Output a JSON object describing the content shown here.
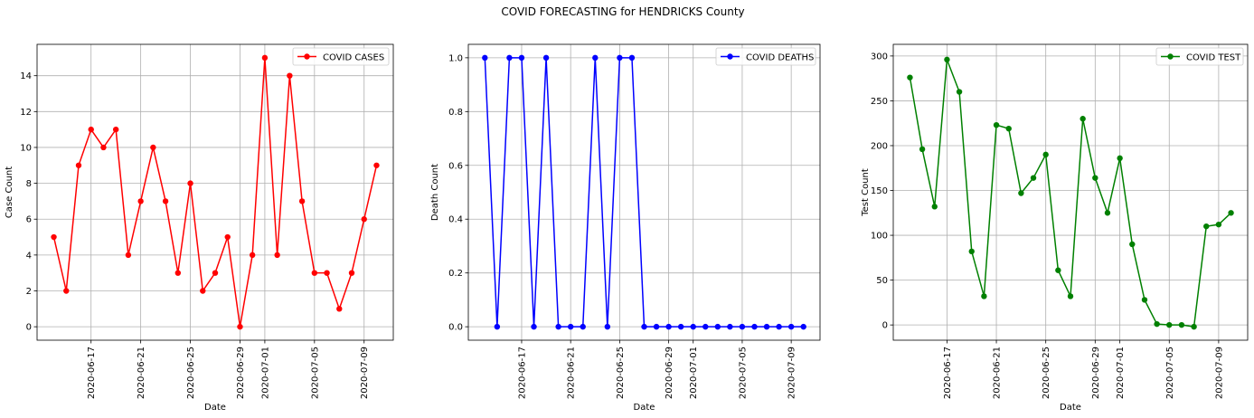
{
  "suptitle": "COVID FORECASTING for HENDRICKS County",
  "x_tick_labels": [
    "2020-06-17",
    "2020-06-21",
    "2020-06-25",
    "2020-06-29",
    "2020-07-01",
    "2020-07-05",
    "2020-07-09"
  ],
  "chart_data": [
    {
      "type": "line",
      "series": [
        {
          "name": "COVID CASES",
          "color": "#ff0000",
          "marker": "circle",
          "values": [
            5,
            2,
            9,
            11,
            10,
            11,
            4,
            7,
            10,
            7,
            3,
            8,
            2,
            3,
            5,
            0,
            4,
            15,
            4,
            14,
            7,
            3,
            3,
            1,
            3,
            6,
            9
          ]
        }
      ],
      "x": [
        "2020-06-14",
        "2020-06-15",
        "2020-06-16",
        "2020-06-17",
        "2020-06-18",
        "2020-06-19",
        "2020-06-20",
        "2020-06-21",
        "2020-06-22",
        "2020-06-23",
        "2020-06-24",
        "2020-06-25",
        "2020-06-26",
        "2020-06-27",
        "2020-06-28",
        "2020-06-29",
        "2020-06-30",
        "2020-07-01",
        "2020-07-02",
        "2020-07-03",
        "2020-07-04",
        "2020-07-05",
        "2020-07-06",
        "2020-07-07",
        "2020-07-08",
        "2020-07-09",
        "2020-07-10"
      ],
      "xlabel": "Date",
      "ylabel": "Case Count",
      "ylim": [
        -0.75,
        15.75
      ],
      "yticks": [
        0,
        2,
        4,
        6,
        8,
        10,
        12,
        14
      ],
      "ytick_labels": [
        "0",
        "2",
        "4",
        "6",
        "8",
        "10",
        "12",
        "14"
      ],
      "legend": "top-right",
      "grid": true
    },
    {
      "type": "line",
      "series": [
        {
          "name": "COVID DEATHS",
          "color": "#0000ff",
          "marker": "circle",
          "values": [
            1,
            0,
            1,
            1,
            0,
            1,
            0,
            0,
            0,
            1,
            0,
            1,
            1,
            0,
            0,
            0,
            0,
            0,
            0,
            0,
            0,
            0,
            0,
            0,
            0,
            0,
            0
          ]
        }
      ],
      "x": [
        "2020-06-14",
        "2020-06-15",
        "2020-06-16",
        "2020-06-17",
        "2020-06-18",
        "2020-06-19",
        "2020-06-20",
        "2020-06-21",
        "2020-06-22",
        "2020-06-23",
        "2020-06-24",
        "2020-06-25",
        "2020-06-26",
        "2020-06-27",
        "2020-06-28",
        "2020-06-29",
        "2020-06-30",
        "2020-07-01",
        "2020-07-02",
        "2020-07-03",
        "2020-07-04",
        "2020-07-05",
        "2020-07-06",
        "2020-07-07",
        "2020-07-08",
        "2020-07-09",
        "2020-07-10"
      ],
      "xlabel": "Date",
      "ylabel": "Death Count",
      "ylim": [
        -0.05,
        1.05
      ],
      "yticks": [
        0,
        0.2,
        0.4,
        0.6,
        0.8,
        1.0
      ],
      "ytick_labels": [
        "0.0",
        "0.2",
        "0.4",
        "0.6",
        "0.8",
        "1.0"
      ],
      "legend": "top-right",
      "grid": true
    },
    {
      "type": "line",
      "series": [
        {
          "name": "COVID TEST",
          "color": "#008000",
          "marker": "circle",
          "values": [
            276,
            196,
            132,
            296,
            260,
            82,
            32,
            223,
            219,
            147,
            164,
            190,
            61,
            32,
            230,
            164,
            125,
            186,
            90,
            28,
            1,
            0,
            0,
            -2,
            110,
            112,
            125
          ]
        }
      ],
      "x": [
        "2020-06-14",
        "2020-06-15",
        "2020-06-16",
        "2020-06-17",
        "2020-06-18",
        "2020-06-19",
        "2020-06-20",
        "2020-06-21",
        "2020-06-22",
        "2020-06-23",
        "2020-06-24",
        "2020-06-25",
        "2020-06-26",
        "2020-06-27",
        "2020-06-28",
        "2020-06-29",
        "2020-06-30",
        "2020-07-01",
        "2020-07-02",
        "2020-07-03",
        "2020-07-04",
        "2020-07-05",
        "2020-07-06",
        "2020-07-07",
        "2020-07-08",
        "2020-07-09",
        "2020-07-10"
      ],
      "xlabel": "Date",
      "ylabel": "Test Count",
      "ylim": [
        -17,
        313
      ],
      "yticks": [
        0,
        50,
        100,
        150,
        200,
        250,
        300
      ],
      "ytick_labels": [
        "0",
        "50",
        "100",
        "150",
        "200",
        "250",
        "300"
      ],
      "legend": "top-right",
      "grid": true
    }
  ]
}
